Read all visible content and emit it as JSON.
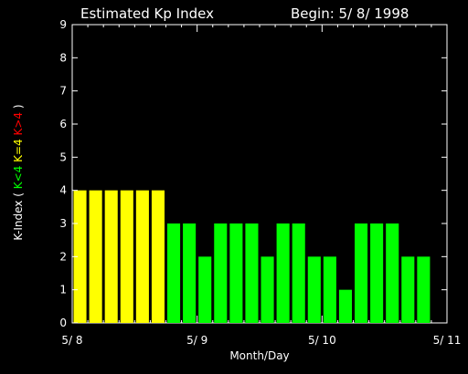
{
  "chart_data": {
    "type": "bar",
    "title": "Estimated Kp Index",
    "subtitle": "Begin: 5/ 8/ 1998",
    "xlabel": "Month/Day",
    "ylabel": {
      "prefix": "K-Index (",
      "green": "K<4",
      "yellow": "K=4",
      "red": "K>4",
      "suffix": ")"
    },
    "ylim": [
      0,
      9
    ],
    "yticks": [
      "0",
      "1",
      "2",
      "3",
      "4",
      "5",
      "6",
      "7",
      "8",
      "9"
    ],
    "xticks": [
      "5/ 8",
      "5/ 9",
      "5/ 10",
      "5/ 11"
    ],
    "values": [
      4,
      4,
      4,
      4,
      4,
      4,
      3,
      3,
      2,
      3,
      3,
      3,
      2,
      3,
      3,
      2,
      2,
      1,
      3,
      3,
      3,
      2,
      2
    ],
    "colors": {
      "below4": "#00ff00",
      "equal4": "#ffff00",
      "above4": "#ff0000"
    }
  }
}
